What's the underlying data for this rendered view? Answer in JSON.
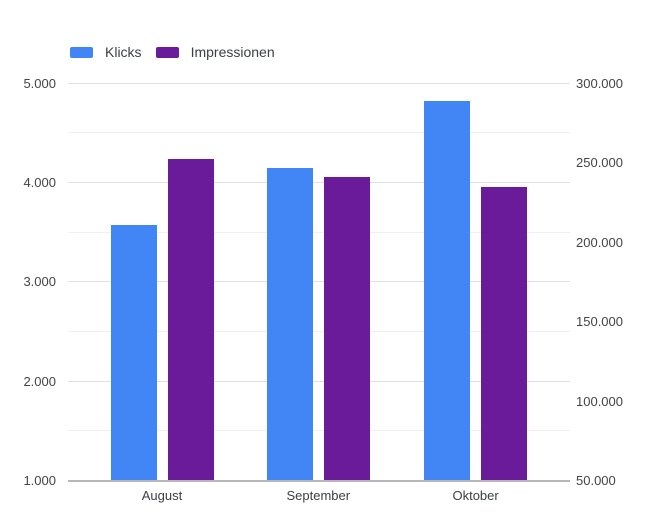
{
  "legend": {
    "items": [
      {
        "label": "Klicks",
        "color": "#4285f4"
      },
      {
        "label": "Impressionen",
        "color": "#6a1b9a"
      }
    ]
  },
  "chart_data": {
    "type": "bar",
    "title": "",
    "xlabel": "",
    "ylabel": "",
    "grid": true,
    "legend_position": "top-left",
    "categories": [
      "August",
      "September",
      "Oktober"
    ],
    "series": [
      {
        "name": "Klicks",
        "axis": "left",
        "color": "#4285f4",
        "values": [
          3570,
          4140,
          4820
        ]
      },
      {
        "name": "Impressionen",
        "axis": "right",
        "color": "#6a1b9a",
        "values": [
          252000,
          241000,
          234500
        ]
      }
    ],
    "left_axis": {
      "min": 1000,
      "max": 5000,
      "minor_step": 500,
      "ticks": [
        "5.000",
        "4.000",
        "3.000",
        "2.000",
        "1.000"
      ]
    },
    "right_axis": {
      "min": 50000,
      "max": 300000,
      "ticks": [
        "300.000",
        "250.000",
        "200.000",
        "150.000",
        "100.000",
        "50.000"
      ]
    }
  }
}
